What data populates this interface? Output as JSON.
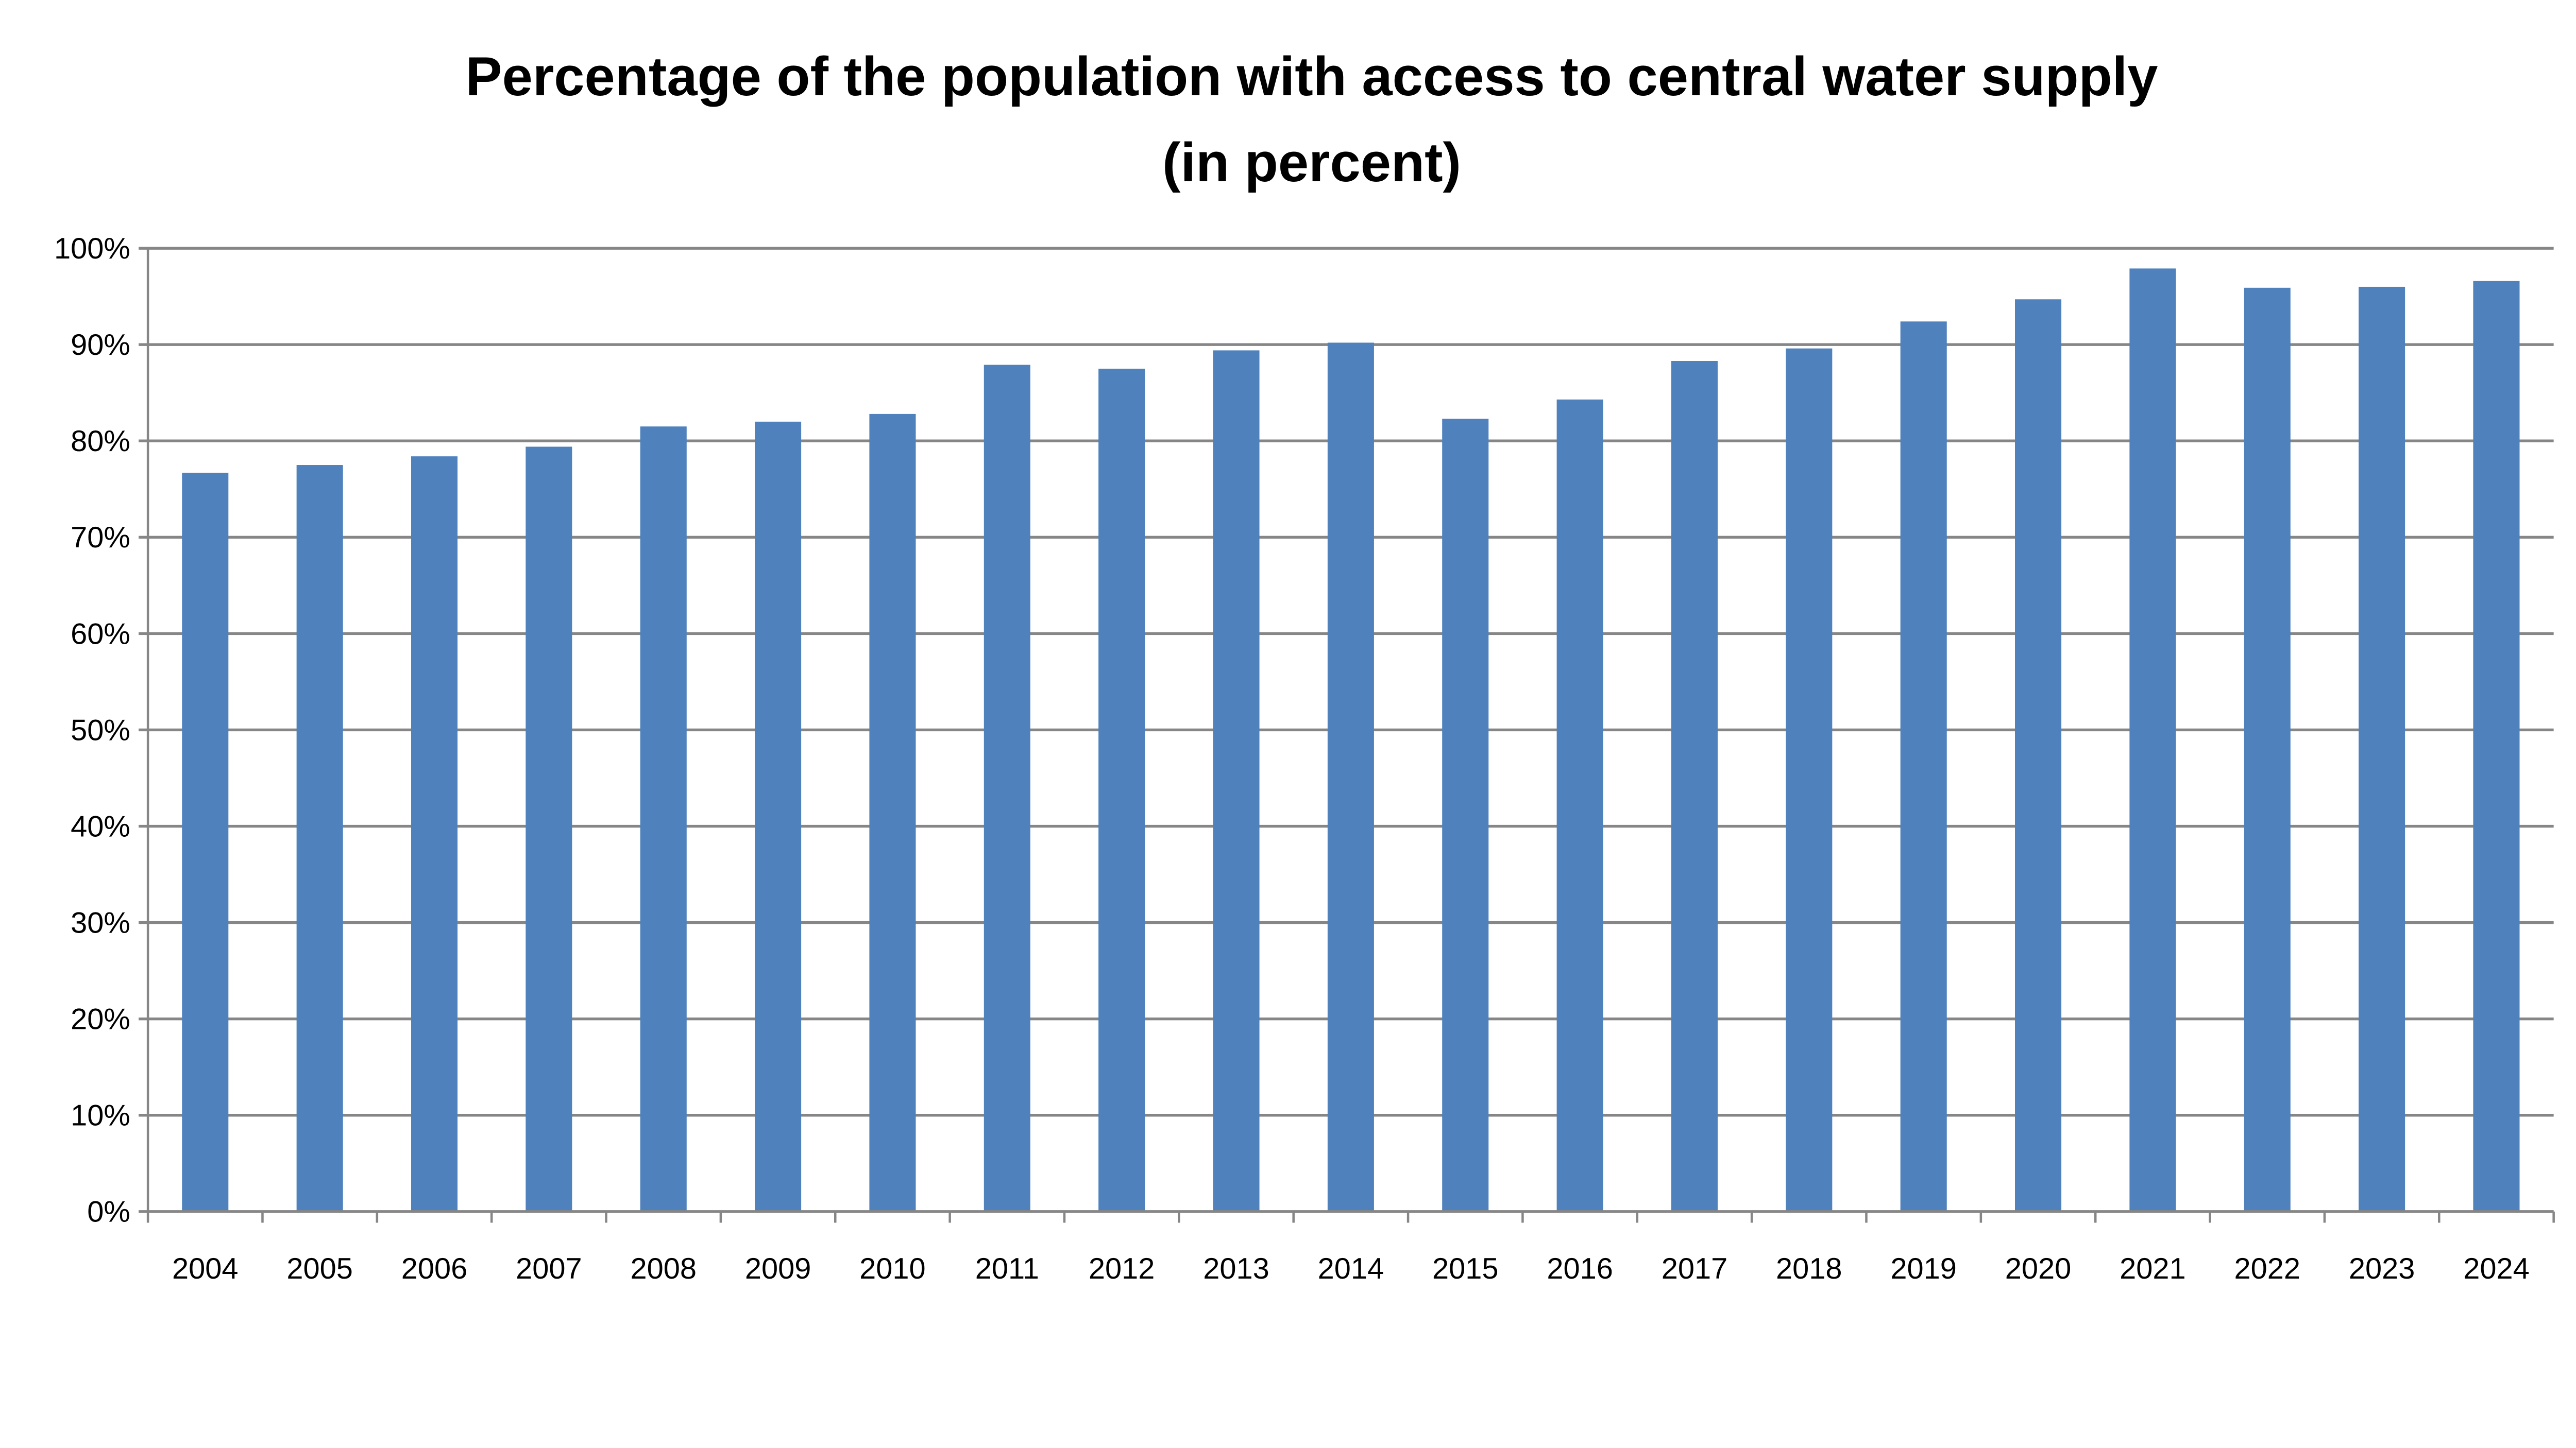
{
  "chart_data": {
    "type": "bar",
    "title": "Percentage of the population with access to central water supply",
    "subtitle": "(in percent)",
    "xlabel": "",
    "ylabel": "",
    "categories": [
      "2004",
      "2005",
      "2006",
      "2007",
      "2008",
      "2009",
      "2010",
      "2011",
      "2012",
      "2013",
      "2014",
      "2015",
      "2016",
      "2017",
      "2018",
      "2019",
      "2020",
      "2021",
      "2022",
      "2023",
      "2024"
    ],
    "values": [
      76.7,
      77.5,
      78.4,
      79.4,
      81.5,
      82.0,
      82.8,
      87.9,
      87.5,
      89.4,
      90.2,
      82.3,
      84.3,
      88.3,
      89.6,
      92.4,
      94.7,
      97.9,
      95.9,
      96.0,
      96.6
    ],
    "ylim": [
      0,
      100
    ],
    "yticks": [
      "0%",
      "10%",
      "20%",
      "30%",
      "40%",
      "50%",
      "60%",
      "70%",
      "80%",
      "90%",
      "100%"
    ],
    "grid": true,
    "legend": "none",
    "colors": {
      "bar": "#4F81BD",
      "grid": "#868686"
    }
  }
}
